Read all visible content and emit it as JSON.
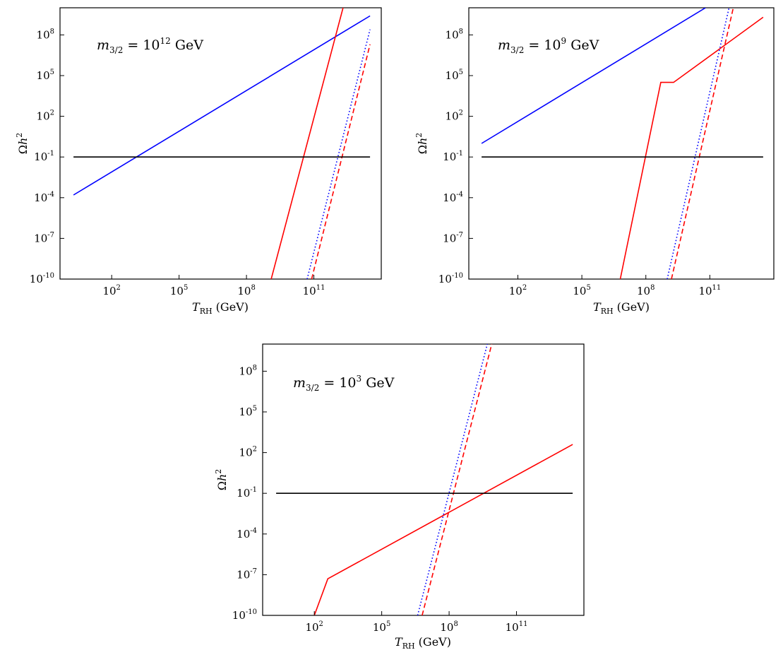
{
  "chart_data": [
    {
      "type": "line",
      "annotation": "m_{3/2} = 10^{12} GeV",
      "xlabel": "T_RH (GeV)",
      "ylabel": "Ωh²",
      "xscale": "log",
      "yscale": "log",
      "xlim_log10": [
        -0.3,
        14.0
      ],
      "ylim_log10": [
        -10,
        10
      ],
      "x_ticks": [
        "10^2",
        "10^5",
        "10^8",
        "10^11"
      ],
      "y_ticks": [
        "10^-10",
        "10^-7",
        "10^-4",
        "10^-1",
        "10^2",
        "10^5",
        "10^8"
      ],
      "grid": false,
      "series": [
        {
          "style": "solid",
          "color": "#0000ff",
          "points_log10": [
            [
              0.3,
              -3.8
            ],
            [
              13.5,
              9.4
            ]
          ]
        },
        {
          "style": "solid",
          "color": "#ff0000",
          "points_log10": [
            [
              9.1,
              -10
            ],
            [
              12.3,
              10
            ]
          ]
        },
        {
          "style": "dotted",
          "color": "#0000ff",
          "points_log10": [
            [
              10.7,
              -10
            ],
            [
              13.5,
              8.4
            ]
          ]
        },
        {
          "style": "dashed",
          "color": "#ff0000",
          "points_log10": [
            [
              10.9,
              -10
            ],
            [
              13.5,
              7.3
            ]
          ]
        },
        {
          "style": "solid",
          "color": "#000000",
          "points_log10": [
            [
              0.3,
              -1.0
            ],
            [
              13.5,
              -1.0
            ]
          ]
        }
      ]
    },
    {
      "type": "line",
      "annotation": "m_{3/2} = 10^9 GeV",
      "xlabel": "T_RH (GeV)",
      "ylabel": "Ωh²",
      "xscale": "log",
      "yscale": "log",
      "xlim_log10": [
        -0.3,
        14.0
      ],
      "ylim_log10": [
        -10,
        10
      ],
      "x_ticks": [
        "10^2",
        "10^5",
        "10^8",
        "10^11"
      ],
      "y_ticks": [
        "10^-10",
        "10^-7",
        "10^-4",
        "10^-1",
        "10^2",
        "10^5",
        "10^8"
      ],
      "grid": false,
      "series": [
        {
          "style": "solid",
          "color": "#0000ff",
          "points_log10": [
            [
              0.3,
              0.0
            ],
            [
              10.8,
              10
            ]
          ]
        },
        {
          "style": "solid",
          "color": "#ff0000",
          "points_log10": [
            [
              6.8,
              -10
            ],
            [
              8.7,
              4.5
            ],
            [
              9.3,
              4.5
            ],
            [
              13.5,
              9.3
            ]
          ]
        },
        {
          "style": "dotted",
          "color": "#0000ff",
          "points_log10": [
            [
              9.0,
              -10
            ],
            [
              11.9,
              10
            ]
          ]
        },
        {
          "style": "dashed",
          "color": "#ff0000",
          "points_log10": [
            [
              9.2,
              -10
            ],
            [
              12.1,
              10
            ]
          ]
        },
        {
          "style": "solid",
          "color": "#000000",
          "points_log10": [
            [
              0.3,
              -1.0
            ],
            [
              13.5,
              -1.0
            ]
          ]
        }
      ]
    },
    {
      "type": "line",
      "annotation": "m_{3/2} = 10^3 GeV",
      "xlabel": "T_RH (GeV)",
      "ylabel": "Ωh²",
      "xscale": "log",
      "yscale": "log",
      "xlim_log10": [
        -0.3,
        14.0
      ],
      "ylim_log10": [
        -10,
        10
      ],
      "x_ticks": [
        "10^2",
        "10^5",
        "10^8",
        "10^11"
      ],
      "y_ticks": [
        "10^-10",
        "10^-7",
        "10^-4",
        "10^-1",
        "10^2",
        "10^5",
        "10^8"
      ],
      "grid": false,
      "series": [
        {
          "style": "solid",
          "color": "#ff0000",
          "points_log10": [
            [
              2.0,
              -10
            ],
            [
              2.6,
              -7.3
            ],
            [
              13.5,
              2.6
            ]
          ]
        },
        {
          "style": "dotted",
          "color": "#0000ff",
          "points_log10": [
            [
              6.6,
              -10
            ],
            [
              9.7,
              10
            ]
          ]
        },
        {
          "style": "dashed",
          "color": "#ff0000",
          "points_log10": [
            [
              6.8,
              -10
            ],
            [
              9.9,
              10
            ]
          ]
        },
        {
          "style": "solid",
          "color": "#000000",
          "points_log10": [
            [
              0.3,
              -1.0
            ],
            [
              13.5,
              -1.0
            ]
          ]
        }
      ]
    }
  ]
}
